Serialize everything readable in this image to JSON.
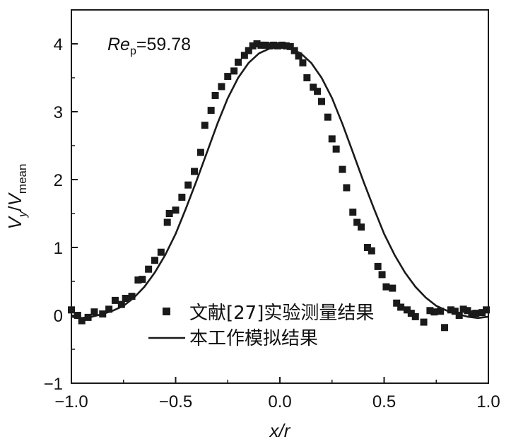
{
  "chart_data": {
    "type": "scatter",
    "xlabel": "x/r",
    "ylabel": {
      "main": "V",
      "main_sub": "y",
      "sep": "/",
      "denom": "V",
      "denom_sub": "mean"
    },
    "xlim": [
      -1.0,
      1.0
    ],
    "ylim": [
      -1,
      4.5
    ],
    "xticks": [
      -1.0,
      -0.5,
      0.0,
      0.5,
      1.0
    ],
    "xtick_labels": [
      "−1.0",
      "−0.5",
      "0.0",
      "0.5",
      "1.0"
    ],
    "yticks": [
      -1,
      0,
      1,
      2,
      3,
      4
    ],
    "ytick_labels": [
      "−1",
      "0",
      "1",
      "2",
      "3",
      "4"
    ],
    "annotation": {
      "main": "Re",
      "sub": "p",
      "rest": "=59.78"
    },
    "grid": false,
    "legend_position": "lower-center",
    "series": [
      {
        "name": "文献[27]实验测量结果",
        "kind": "scatter",
        "marker": "square",
        "color": "#1a1a1a",
        "x": [
          -1.0,
          -0.97,
          -0.95,
          -0.92,
          -0.89,
          -0.85,
          -0.82,
          -0.79,
          -0.76,
          -0.74,
          -0.71,
          -0.68,
          -0.66,
          -0.63,
          -0.6,
          -0.57,
          -0.54,
          -0.53,
          -0.5,
          -0.47,
          -0.44,
          -0.41,
          -0.38,
          -0.36,
          -0.33,
          -0.31,
          -0.28,
          -0.25,
          -0.22,
          -0.2,
          -0.17,
          -0.15,
          -0.13,
          -0.11,
          -0.09,
          -0.07,
          -0.05,
          -0.03,
          -0.01,
          0.01,
          0.03,
          0.05,
          0.07,
          0.09,
          0.11,
          0.13,
          0.16,
          0.18,
          0.2,
          0.23,
          0.25,
          0.27,
          0.3,
          0.32,
          0.35,
          0.37,
          0.39,
          0.42,
          0.44,
          0.47,
          0.49,
          0.51,
          0.54,
          0.56,
          0.58,
          0.61,
          0.63,
          0.65,
          0.69,
          0.72,
          0.74,
          0.77,
          0.79,
          0.82,
          0.84,
          0.86,
          0.88,
          0.9,
          0.92,
          0.94,
          0.97,
          0.99
        ],
        "y": [
          0.08,
          0.0,
          -0.08,
          -0.03,
          0.05,
          0.02,
          0.09,
          0.22,
          0.16,
          0.25,
          0.28,
          0.52,
          0.53,
          0.68,
          0.81,
          0.93,
          1.37,
          1.5,
          1.55,
          1.74,
          1.92,
          2.12,
          2.4,
          2.8,
          3.02,
          3.24,
          3.37,
          3.52,
          3.6,
          3.73,
          3.83,
          3.9,
          3.97,
          4.0,
          3.98,
          3.98,
          3.97,
          3.98,
          3.97,
          3.98,
          3.97,
          3.96,
          3.9,
          3.82,
          3.72,
          3.5,
          3.36,
          3.3,
          3.15,
          2.92,
          2.6,
          2.45,
          2.15,
          1.88,
          1.52,
          1.37,
          1.3,
          1.0,
          0.95,
          0.72,
          0.6,
          0.42,
          0.4,
          0.18,
          0.12,
          0.08,
          0.03,
          -0.02,
          -0.1,
          0.07,
          0.05,
          0.06,
          -0.18,
          0.08,
          0.06,
          0.0,
          0.09,
          0.07,
          0.02,
          0.03,
          0.04,
          0.08
        ]
      },
      {
        "name": "本工作模拟结果",
        "kind": "line",
        "color": "#1a1a1a",
        "x": [
          -1.0,
          -0.95,
          -0.9,
          -0.85,
          -0.8,
          -0.75,
          -0.7,
          -0.65,
          -0.6,
          -0.55,
          -0.5,
          -0.45,
          -0.4,
          -0.35,
          -0.3,
          -0.25,
          -0.2,
          -0.15,
          -0.1,
          -0.05,
          0.0,
          0.05,
          0.1,
          0.15,
          0.2,
          0.25,
          0.3,
          0.35,
          0.4,
          0.45,
          0.5,
          0.55,
          0.6,
          0.65,
          0.7,
          0.75,
          0.8,
          0.85,
          0.9,
          0.95,
          1.0
        ],
        "y": [
          -0.02,
          -0.04,
          -0.02,
          0.02,
          0.07,
          0.14,
          0.26,
          0.42,
          0.63,
          0.89,
          1.2,
          1.58,
          1.98,
          2.4,
          2.82,
          3.2,
          3.5,
          3.72,
          3.86,
          3.93,
          3.95,
          3.93,
          3.86,
          3.72,
          3.5,
          3.2,
          2.82,
          2.4,
          1.98,
          1.58,
          1.2,
          0.89,
          0.63,
          0.42,
          0.26,
          0.14,
          0.07,
          0.02,
          -0.02,
          -0.04,
          -0.02
        ]
      }
    ]
  }
}
